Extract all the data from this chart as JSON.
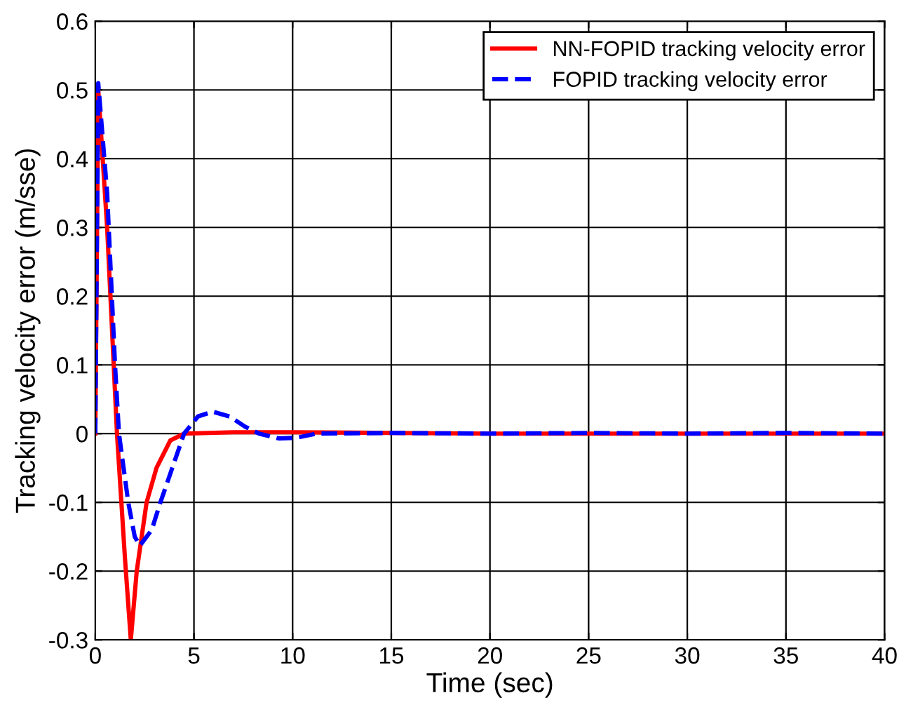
{
  "chart_data": {
    "type": "line",
    "xlabel": "Time (sec)",
    "ylabel": "Tracking velocity error (m/sse)",
    "xlim": [
      0,
      40
    ],
    "ylim": [
      -0.3,
      0.6
    ],
    "xticks": [
      0,
      5,
      10,
      15,
      20,
      25,
      30,
      35,
      40
    ],
    "yticks": [
      -0.3,
      -0.2,
      -0.1,
      0,
      0.1,
      0.2,
      0.3,
      0.4,
      0.5,
      0.6
    ],
    "grid": true,
    "legend": "top right",
    "series": [
      {
        "name": "NN-FOPID tracking velocity error",
        "color": "#ff0000",
        "line_style": "solid",
        "x": [
          0,
          0.15,
          0.6,
          1.1,
          1.5,
          1.8,
          2.1,
          2.6,
          3.1,
          3.8,
          4.5,
          7,
          10,
          15,
          20,
          25,
          30,
          35,
          40
        ],
        "values": [
          0,
          0.5,
          0.3,
          0,
          -0.18,
          -0.3,
          -0.2,
          -0.1,
          -0.05,
          -0.01,
          0,
          0.002,
          0.002,
          0.001,
          0,
          0,
          0,
          0,
          0
        ]
      },
      {
        "name": "FOPID tracking velocity error",
        "color": "#0000ff",
        "line_style": "dashed",
        "x": [
          0,
          0.15,
          0.6,
          1.0,
          1.2,
          1.67,
          2.0,
          2.26,
          2.86,
          3.3,
          3.9,
          4.5,
          5.2,
          5.95,
          6.8,
          7.6,
          8.3,
          9.3,
          10.2,
          11.2,
          15,
          20,
          25,
          30,
          35,
          40
        ],
        "values": [
          0,
          0.51,
          0.35,
          0.1,
          0,
          -0.1,
          -0.15,
          -0.163,
          -0.14,
          -0.1,
          -0.05,
          0,
          0.025,
          0.032,
          0.025,
          0.01,
          0,
          -0.007,
          -0.006,
          0,
          0.001,
          0,
          0.001,
          0,
          0.001,
          0
        ]
      }
    ]
  }
}
